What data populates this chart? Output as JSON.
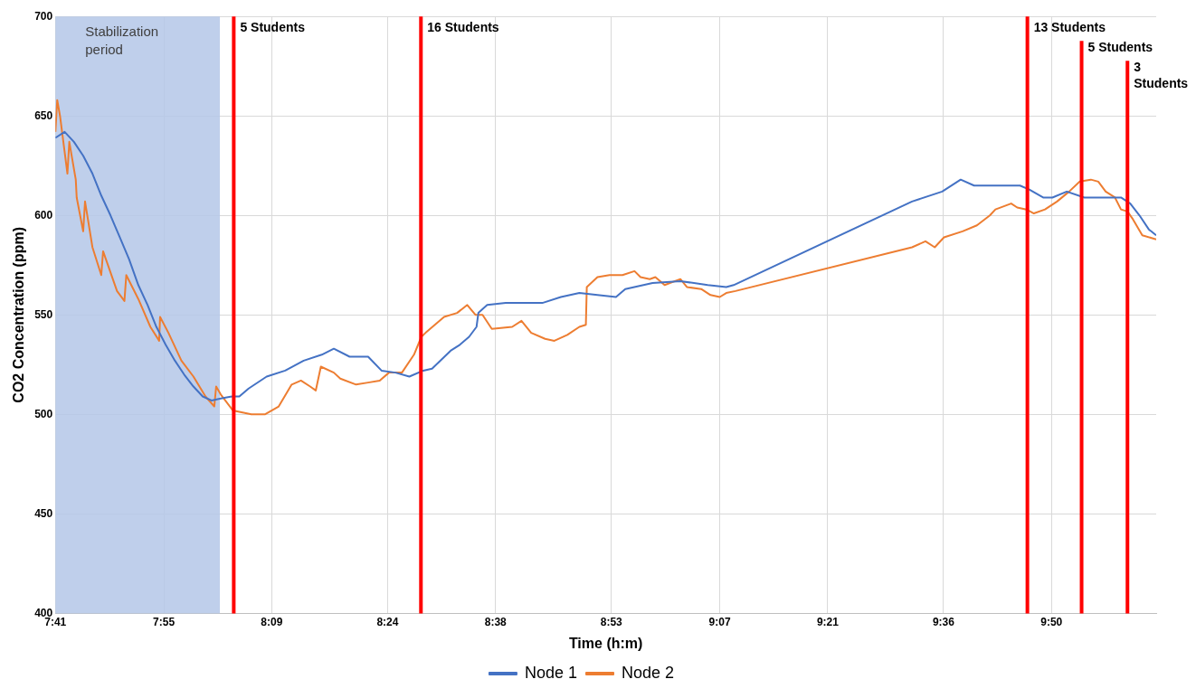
{
  "chart_data": {
    "type": "line",
    "xlabel": "Time (h:m)",
    "ylabel": "CO2 Concentration (ppm)",
    "xlim": [
      7.683,
      10.059
    ],
    "ylim": [
      400,
      700
    ],
    "xticks": [
      {
        "value": 7.683,
        "label": "7:41"
      },
      {
        "value": 7.917,
        "label": "7:55"
      },
      {
        "value": 8.15,
        "label": "8:09"
      },
      {
        "value": 8.4,
        "label": "8:24"
      },
      {
        "value": 8.633,
        "label": "8:38"
      },
      {
        "value": 8.883,
        "label": "8:53"
      },
      {
        "value": 9.117,
        "label": "9:07"
      },
      {
        "value": 9.35,
        "label": "9:21"
      },
      {
        "value": 9.6,
        "label": "9:36"
      },
      {
        "value": 9.833,
        "label": "9:50"
      }
    ],
    "yticks": [
      400,
      450,
      500,
      550,
      600,
      650,
      700
    ],
    "grid": true,
    "legend": "bottom",
    "marker": "none",
    "line_style": "solid",
    "series": [
      {
        "name": "Node 1",
        "color": "#4472c4",
        "x": [
          7.683,
          7.703,
          7.723,
          7.743,
          7.763,
          7.782,
          7.802,
          7.822,
          7.842,
          7.862,
          7.882,
          7.901,
          7.921,
          7.941,
          7.961,
          7.981,
          8.001,
          8.02,
          8.04,
          8.064,
          8.08,
          8.1,
          8.139,
          8.179,
          8.219,
          8.258,
          8.284,
          8.318,
          8.358,
          8.387,
          8.417,
          8.447,
          8.477,
          8.496,
          8.536,
          8.556,
          8.576,
          8.592,
          8.596,
          8.615,
          8.655,
          8.734,
          8.774,
          8.814,
          8.853,
          8.893,
          8.913,
          8.972,
          9.032,
          9.091,
          9.131,
          9.147,
          9.532,
          9.597,
          9.637,
          9.666,
          9.726,
          9.765,
          9.785,
          9.815,
          9.835,
          9.866,
          9.904,
          9.983,
          10.003,
          10.023,
          10.043,
          10.059
        ],
        "values": [
          639,
          642,
          637,
          630,
          621,
          610,
          600,
          589,
          578,
          565,
          555,
          544,
          535,
          527,
          520,
          514,
          509,
          507,
          508,
          509,
          509,
          513,
          519,
          522,
          527,
          530,
          533,
          529,
          529,
          522,
          521,
          519,
          522,
          523,
          532,
          535,
          539,
          544,
          551,
          555,
          556,
          556,
          559,
          561,
          560,
          559,
          563,
          566,
          567,
          565,
          564,
          565,
          607,
          612,
          618,
          615,
          615,
          615,
          613,
          609,
          609,
          612,
          609,
          609,
          606,
          600,
          593,
          590
        ]
      },
      {
        "name": "Node 2",
        "color": "#ed7d31",
        "x": [
          7.683,
          7.687,
          7.693,
          7.709,
          7.713,
          7.727,
          7.729,
          7.743,
          7.747,
          7.763,
          7.782,
          7.786,
          7.816,
          7.832,
          7.836,
          7.862,
          7.888,
          7.907,
          7.909,
          7.927,
          7.955,
          7.981,
          8.007,
          8.026,
          8.03,
          8.04,
          8.066,
          8.106,
          8.135,
          8.165,
          8.193,
          8.213,
          8.233,
          8.245,
          8.256,
          8.284,
          8.298,
          8.332,
          8.358,
          8.383,
          8.403,
          8.431,
          8.457,
          8.473,
          8.482,
          8.522,
          8.55,
          8.572,
          8.59,
          8.605,
          8.625,
          8.669,
          8.689,
          8.71,
          8.74,
          8.76,
          8.788,
          8.814,
          8.828,
          8.83,
          8.853,
          8.879,
          8.907,
          8.933,
          8.946,
          8.966,
          8.978,
          8.998,
          9.032,
          9.046,
          9.077,
          9.097,
          9.117,
          9.131,
          9.151,
          9.532,
          9.561,
          9.581,
          9.601,
          9.641,
          9.672,
          9.7,
          9.712,
          9.746,
          9.759,
          9.779,
          9.795,
          9.819,
          9.845,
          9.871,
          9.894,
          9.918,
          9.934,
          9.95,
          9.97,
          9.983,
          9.997,
          10.009,
          10.029,
          10.059
        ],
        "values": [
          642,
          658,
          650,
          621,
          637,
          618,
          609,
          592,
          607,
          584,
          570,
          582,
          562,
          557,
          570,
          558,
          544,
          537,
          549,
          541,
          527,
          519,
          509,
          504,
          514,
          510,
          502,
          500,
          500,
          504,
          515,
          517,
          514,
          512,
          524,
          521,
          518,
          515,
          516,
          517,
          521,
          521,
          530,
          539,
          541,
          549,
          551,
          555,
          550,
          550,
          543,
          544,
          547,
          541,
          538,
          537,
          540,
          544,
          545,
          564,
          569,
          570,
          570,
          572,
          569,
          568,
          569,
          565,
          568,
          564,
          563,
          560,
          559,
          561,
          562,
          584,
          587,
          584,
          589,
          592,
          595,
          600,
          603,
          606,
          604,
          603,
          601,
          603,
          607,
          612,
          617,
          618,
          617,
          612,
          609,
          603,
          602,
          598,
          590,
          588
        ]
      }
    ],
    "bands": [
      {
        "axis": "x",
        "from": 7.683,
        "to": 8.038,
        "label": "Stabilization period",
        "color": "#b4c7e7"
      }
    ],
    "ref_lines": [
      {
        "axis": "x",
        "value": 8.068,
        "label": "5 Students",
        "color": "#ff0000"
      },
      {
        "axis": "x",
        "value": 8.472,
        "label": "16 Students",
        "color": "#ff0000"
      },
      {
        "axis": "x",
        "value": 9.781,
        "label": "13 Students",
        "color": "#ff0000"
      },
      {
        "axis": "x",
        "value": 9.898,
        "label": "5 Students",
        "color": "#ff0000"
      },
      {
        "axis": "x",
        "value": 9.997,
        "label": "3 Students",
        "color": "#ff0000"
      }
    ]
  }
}
